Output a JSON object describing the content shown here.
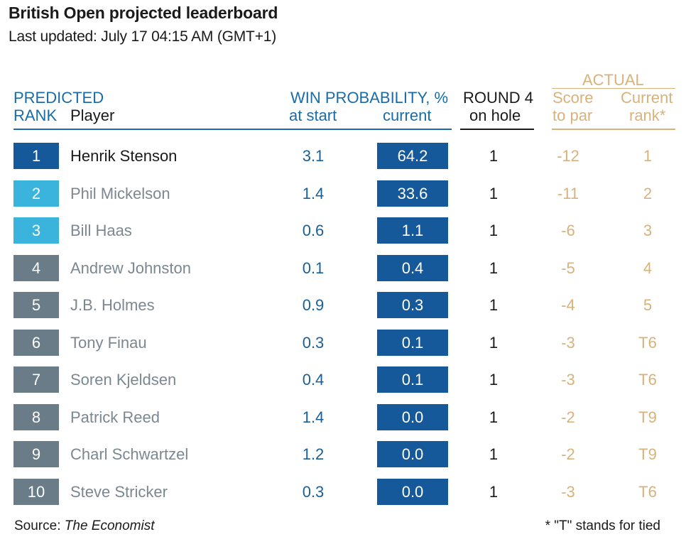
{
  "chart_data": {
    "type": "table",
    "title": "British Open projected leaderboard",
    "subtitle": "Last updated: July 17 04:15 AM (GMT+1)",
    "headers": {
      "predicted_rank_1": "PREDICTED",
      "predicted_rank_2": "RANK",
      "player": "Player",
      "win_prob": "WIN PROBABILITY, %",
      "at_start": "at start",
      "current": "current",
      "round4_1": "ROUND 4",
      "round4_2": "on hole",
      "actual": "ACTUAL",
      "score_1": "Score",
      "score_2": "to par",
      "crank_1": "Current",
      "crank_2": "rank*"
    },
    "colors": {
      "blue": "#1a6ca8",
      "current_box": "#15599a",
      "gold": "#d8b27c",
      "rank_1": "#15599a",
      "rank_2_3": "#3ab4dc",
      "rank_rest": "#6a7c88",
      "player_grey": "#7b8791"
    },
    "rows": [
      {
        "rank": "1",
        "player": "Henrik Stenson",
        "start": "3.1",
        "current": "64.2",
        "hole": "1",
        "score": "-12",
        "crank": "1"
      },
      {
        "rank": "2",
        "player": "Phil Mickelson",
        "start": "1.4",
        "current": "33.6",
        "hole": "1",
        "score": "-11",
        "crank": "2"
      },
      {
        "rank": "3",
        "player": "Bill Haas",
        "start": "0.6",
        "current": "1.1",
        "hole": "1",
        "score": "-6",
        "crank": "3"
      },
      {
        "rank": "4",
        "player": "Andrew Johnston",
        "start": "0.1",
        "current": "0.4",
        "hole": "1",
        "score": "-5",
        "crank": "4"
      },
      {
        "rank": "5",
        "player": "J.B. Holmes",
        "start": "0.9",
        "current": "0.3",
        "hole": "1",
        "score": "-4",
        "crank": "5"
      },
      {
        "rank": "6",
        "player": "Tony Finau",
        "start": "0.3",
        "current": "0.1",
        "hole": "1",
        "score": "-3",
        "crank": "T6"
      },
      {
        "rank": "7",
        "player": "Soren Kjeldsen",
        "start": "0.4",
        "current": "0.1",
        "hole": "1",
        "score": "-3",
        "crank": "T6"
      },
      {
        "rank": "8",
        "player": "Patrick Reed",
        "start": "1.4",
        "current": "0.0",
        "hole": "1",
        "score": "-2",
        "crank": "T9"
      },
      {
        "rank": "9",
        "player": "Charl Schwartzel",
        "start": "1.2",
        "current": "0.0",
        "hole": "1",
        "score": "-2",
        "crank": "T9"
      },
      {
        "rank": "10",
        "player": "Steve Stricker",
        "start": "0.3",
        "current": "0.0",
        "hole": "1",
        "score": "-3",
        "crank": "T6"
      }
    ],
    "source_label": "Source: ",
    "source_name": "The Economist",
    "footnote": "* \"T\" stands for tied"
  }
}
